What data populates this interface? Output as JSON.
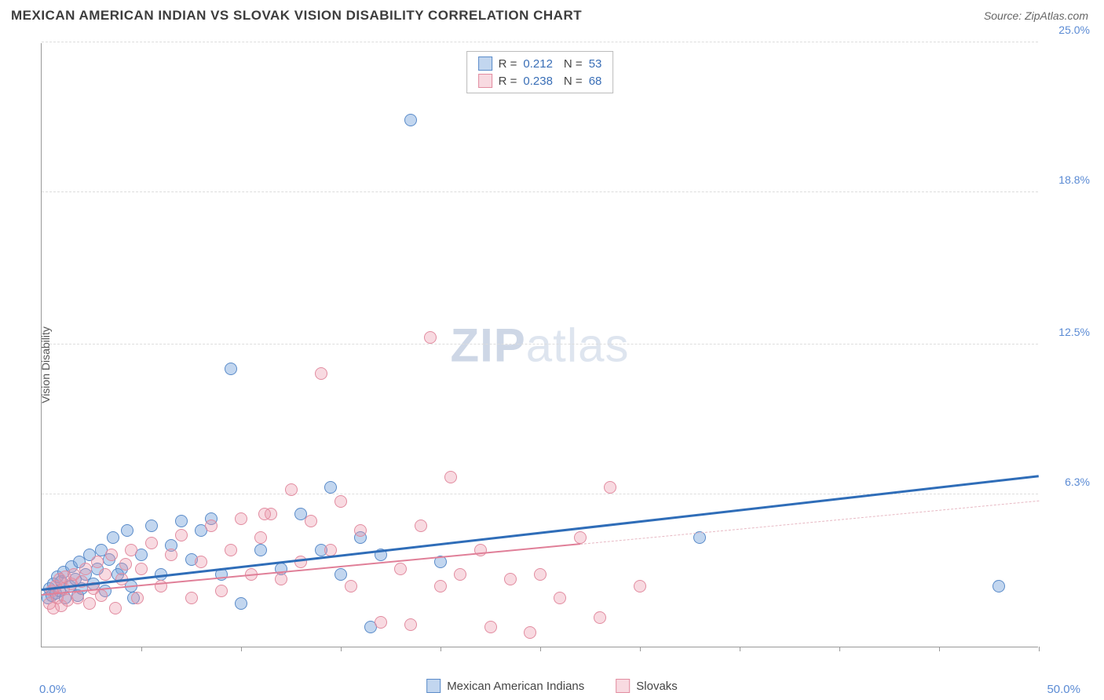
{
  "header": {
    "title": "MEXICAN AMERICAN INDIAN VS SLOVAK VISION DISABILITY CORRELATION CHART",
    "source": "Source: ZipAtlas.com"
  },
  "ylabel": "Vision Disability",
  "watermark": {
    "prefix": "ZIP",
    "suffix": "atlas"
  },
  "chart": {
    "type": "scatter-with-trend",
    "xlim": [
      0,
      50
    ],
    "ylim": [
      0,
      25
    ],
    "xaxis": {
      "min_label": "0.0%",
      "max_label": "50.0%",
      "tick_positions": [
        0,
        5,
        10,
        15,
        20,
        25,
        30,
        35,
        40,
        45,
        50
      ]
    },
    "yaxis": {
      "gridlines": [
        {
          "value": 25.0,
          "label": "25.0%"
        },
        {
          "value": 18.8,
          "label": "18.8%"
        },
        {
          "value": 12.5,
          "label": "12.5%"
        },
        {
          "value": 6.3,
          "label": "6.3%"
        },
        {
          "value": 0.0,
          "label": null
        }
      ]
    },
    "marker_radius": 8,
    "colors": {
      "blue_fill": "rgba(120,165,220,0.45)",
      "blue_stroke": "#5a8bc9",
      "pink_fill": "rgba(236,150,170,0.35)",
      "pink_stroke": "#e28ca0",
      "trend_blue": "#2f6db8",
      "trend_pink": "#e07f98",
      "trend_pink_dash": "#e7b8c3"
    },
    "legend_top": [
      {
        "swatch_fill": "rgba(120,165,220,0.45)",
        "swatch_stroke": "#5a8bc9",
        "r": "0.212",
        "n": "53"
      },
      {
        "swatch_fill": "rgba(236,150,170,0.35)",
        "swatch_stroke": "#e28ca0",
        "r": "0.238",
        "n": "68"
      }
    ],
    "legend_bottom": [
      {
        "swatch_fill": "rgba(120,165,220,0.45)",
        "swatch_stroke": "#5a8bc9",
        "label": "Mexican American Indians"
      },
      {
        "swatch_fill": "rgba(236,150,170,0.35)",
        "swatch_stroke": "#e28ca0",
        "label": "Slovaks"
      }
    ],
    "series": [
      {
        "name": "Mexican American Indians",
        "color_key": "blue",
        "trend": {
          "x1": 0,
          "y1": 2.3,
          "x2": 50,
          "y2": 7.0,
          "solid_to_x": 50
        },
        "points": [
          [
            0.3,
            2.0
          ],
          [
            0.4,
            2.4
          ],
          [
            0.5,
            2.1
          ],
          [
            0.6,
            2.6
          ],
          [
            0.7,
            2.2
          ],
          [
            0.8,
            2.9
          ],
          [
            0.9,
            2.3
          ],
          [
            1.0,
            2.7
          ],
          [
            1.1,
            3.1
          ],
          [
            1.2,
            2.0
          ],
          [
            1.4,
            2.5
          ],
          [
            1.5,
            3.3
          ],
          [
            1.7,
            2.8
          ],
          [
            1.8,
            2.1
          ],
          [
            1.9,
            3.5
          ],
          [
            2.0,
            2.4
          ],
          [
            2.2,
            3.0
          ],
          [
            2.4,
            3.8
          ],
          [
            2.6,
            2.6
          ],
          [
            2.8,
            3.2
          ],
          [
            3.0,
            4.0
          ],
          [
            3.2,
            2.3
          ],
          [
            3.4,
            3.6
          ],
          [
            3.6,
            4.5
          ],
          [
            4.0,
            3.2
          ],
          [
            4.3,
            4.8
          ],
          [
            4.6,
            2.0
          ],
          [
            5.0,
            3.8
          ],
          [
            5.5,
            5.0
          ],
          [
            6.0,
            3.0
          ],
          [
            6.5,
            4.2
          ],
          [
            7.0,
            5.2
          ],
          [
            7.5,
            3.6
          ],
          [
            8.0,
            4.8
          ],
          [
            8.5,
            5.3
          ],
          [
            9.0,
            3.0
          ],
          [
            9.5,
            11.5
          ],
          [
            10.0,
            1.8
          ],
          [
            11.0,
            4.0
          ],
          [
            12.0,
            3.2
          ],
          [
            13.0,
            5.5
          ],
          [
            14.0,
            4.0
          ],
          [
            14.5,
            6.6
          ],
          [
            15.0,
            3.0
          ],
          [
            16.0,
            4.5
          ],
          [
            16.5,
            0.8
          ],
          [
            17.0,
            3.8
          ],
          [
            18.5,
            21.8
          ],
          [
            20.0,
            3.5
          ],
          [
            33.0,
            4.5
          ],
          [
            48.0,
            2.5
          ],
          [
            4.5,
            2.5
          ],
          [
            3.8,
            3.0
          ]
        ]
      },
      {
        "name": "Slovaks",
        "color_key": "pink",
        "trend": {
          "x1": 0,
          "y1": 2.1,
          "x2": 50,
          "y2": 6.0,
          "solid_to_x": 27
        },
        "points": [
          [
            0.4,
            1.8
          ],
          [
            0.5,
            2.3
          ],
          [
            0.6,
            1.6
          ],
          [
            0.7,
            2.5
          ],
          [
            0.8,
            2.0
          ],
          [
            0.9,
            2.8
          ],
          [
            1.0,
            1.7
          ],
          [
            1.1,
            2.4
          ],
          [
            1.2,
            2.9
          ],
          [
            1.3,
            1.9
          ],
          [
            1.5,
            2.6
          ],
          [
            1.6,
            3.0
          ],
          [
            1.8,
            2.0
          ],
          [
            2.0,
            2.7
          ],
          [
            2.2,
            3.2
          ],
          [
            2.4,
            1.8
          ],
          [
            2.6,
            2.4
          ],
          [
            2.8,
            3.5
          ],
          [
            3.0,
            2.1
          ],
          [
            3.2,
            3.0
          ],
          [
            3.5,
            3.8
          ],
          [
            3.7,
            1.6
          ],
          [
            4.0,
            2.8
          ],
          [
            4.2,
            3.4
          ],
          [
            4.5,
            4.0
          ],
          [
            4.8,
            2.0
          ],
          [
            5.0,
            3.2
          ],
          [
            5.5,
            4.3
          ],
          [
            6.0,
            2.5
          ],
          [
            6.5,
            3.8
          ],
          [
            7.0,
            4.6
          ],
          [
            7.5,
            2.0
          ],
          [
            8.0,
            3.5
          ],
          [
            8.5,
            5.0
          ],
          [
            9.0,
            2.3
          ],
          [
            9.5,
            4.0
          ],
          [
            10.0,
            5.3
          ],
          [
            10.5,
            3.0
          ],
          [
            11.0,
            4.5
          ],
          [
            11.5,
            5.5
          ],
          [
            12.0,
            2.8
          ],
          [
            12.5,
            6.5
          ],
          [
            13.0,
            3.5
          ],
          [
            13.5,
            5.2
          ],
          [
            14.0,
            11.3
          ],
          [
            14.5,
            4.0
          ],
          [
            15.0,
            6.0
          ],
          [
            15.5,
            2.5
          ],
          [
            16.0,
            4.8
          ],
          [
            17.0,
            1.0
          ],
          [
            18.0,
            3.2
          ],
          [
            18.5,
            0.9
          ],
          [
            19.0,
            5.0
          ],
          [
            19.5,
            12.8
          ],
          [
            20.0,
            2.5
          ],
          [
            20.5,
            7.0
          ],
          [
            21.0,
            3.0
          ],
          [
            22.0,
            4.0
          ],
          [
            22.5,
            0.8
          ],
          [
            23.5,
            2.8
          ],
          [
            24.5,
            0.6
          ],
          [
            25.0,
            3.0
          ],
          [
            26.0,
            2.0
          ],
          [
            27.0,
            4.5
          ],
          [
            28.0,
            1.2
          ],
          [
            28.5,
            6.6
          ],
          [
            30.0,
            2.5
          ],
          [
            11.2,
            5.5
          ]
        ]
      }
    ]
  }
}
